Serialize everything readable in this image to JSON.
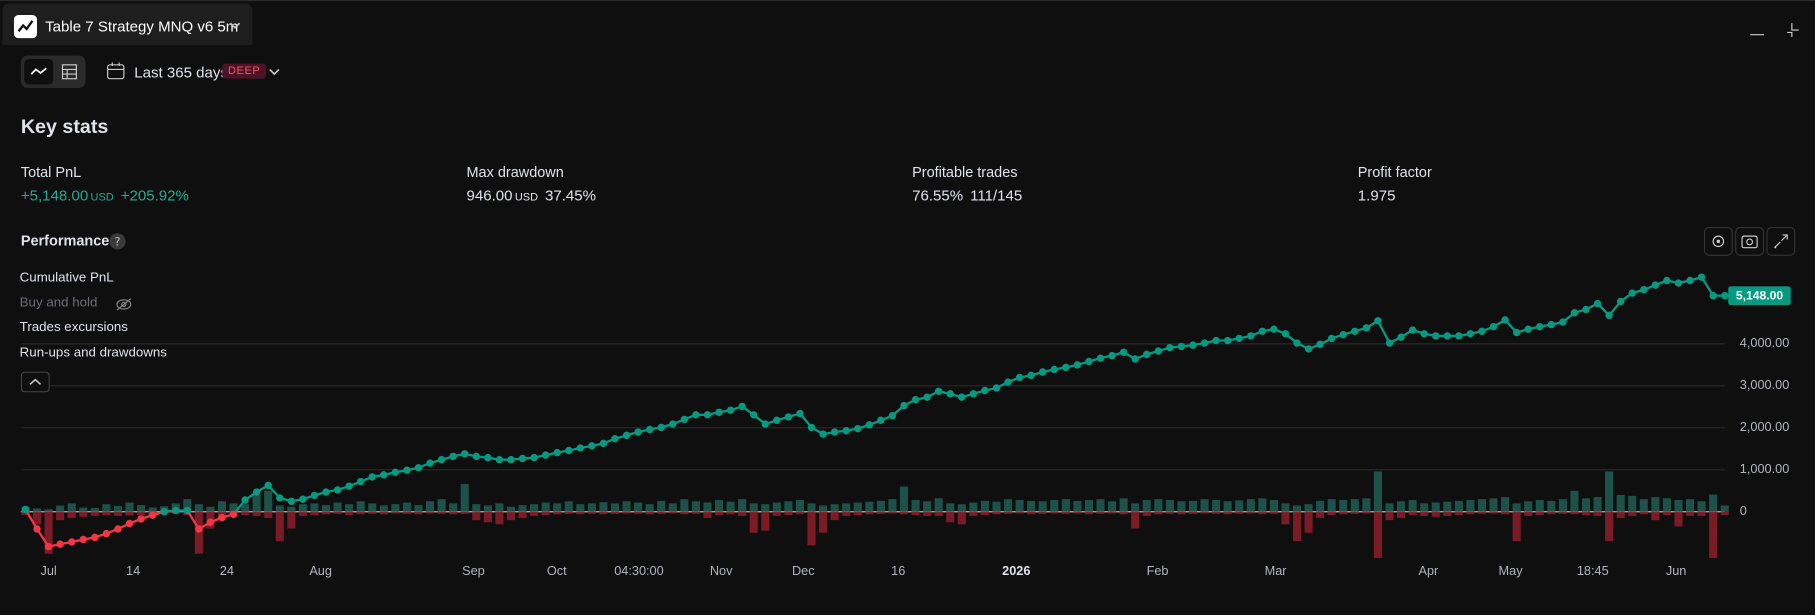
{
  "header": {
    "tab_title": "Table 7 Strategy MNQ v6 5m"
  },
  "toolbar": {
    "date_range": "Last 365 days",
    "badge": "DEEP"
  },
  "key_stats": {
    "title": "Key stats",
    "items": [
      {
        "label": "Total PnL",
        "value": "+5,148.00",
        "unit": "USD",
        "extra": "+205.92%"
      },
      {
        "label": "Max drawdown",
        "value": "946.00",
        "unit": "USD",
        "extra": "37.45%"
      },
      {
        "label": "Profitable trades",
        "value": "76.55%",
        "extra": "111/145"
      },
      {
        "label": "Profit factor",
        "value": "1.975"
      }
    ]
  },
  "performance": {
    "title": "Performance",
    "legend": [
      "Cumulative PnL",
      "Buy and hold",
      "Trades excursions",
      "Run-ups and drawdowns"
    ]
  },
  "chart_data": {
    "type": "line",
    "color": "#089981",
    "negative_color": "#f23645",
    "grid": true,
    "values": [
      55,
      -410,
      -830,
      -770,
      -720,
      -660,
      -610,
      -520,
      -410,
      -280,
      -170,
      -80,
      0,
      30,
      30,
      -410,
      -250,
      -140,
      -60,
      280,
      470,
      630,
      330,
      250,
      300,
      390,
      470,
      520,
      610,
      720,
      830,
      880,
      940,
      990,
      1050,
      1160,
      1240,
      1320,
      1380,
      1320,
      1290,
      1240,
      1240,
      1270,
      1290,
      1350,
      1410,
      1460,
      1520,
      1570,
      1630,
      1740,
      1820,
      1900,
      1960,
      2010,
      2090,
      2200,
      2310,
      2310,
      2370,
      2420,
      2510,
      2310,
      2090,
      2180,
      2260,
      2340,
      2010,
      1850,
      1900,
      1930,
      1980,
      2070,
      2180,
      2290,
      2530,
      2670,
      2730,
      2870,
      2810,
      2730,
      2810,
      2890,
      2950,
      3090,
      3200,
      3250,
      3330,
      3390,
      3440,
      3500,
      3580,
      3660,
      3720,
      3800,
      3640,
      3750,
      3830,
      3910,
      3940,
      3970,
      4020,
      4080,
      4080,
      4130,
      4190,
      4300,
      4350,
      4240,
      4020,
      3880,
      3990,
      4130,
      4220,
      4300,
      4380,
      4550,
      4020,
      4160,
      4330,
      4240,
      4190,
      4190,
      4190,
      4240,
      4300,
      4410,
      4570,
      4270,
      4350,
      4410,
      4460,
      4520,
      4740,
      4820,
      4960,
      4680,
      5010,
      5210,
      5290,
      5400,
      5510,
      5450,
      5510,
      5590,
      5150,
      5148
    ],
    "last_value_label": "5,148.00",
    "runups": {
      "color": "#1f5e55",
      "values": [
        120,
        80,
        60,
        150,
        200,
        100,
        90,
        180,
        140,
        220,
        160,
        100,
        130,
        200,
        300,
        180,
        120,
        250,
        200,
        180,
        400,
        500,
        150,
        120,
        180,
        200,
        160,
        220,
        180,
        250,
        200,
        150,
        180,
        220,
        160,
        250,
        300,
        200,
        660,
        180,
        150,
        200,
        120,
        160,
        180,
        220,
        200,
        250,
        180,
        200,
        230,
        200,
        250,
        220,
        180,
        260,
        200,
        300,
        250,
        220,
        280,
        240,
        300,
        200,
        180,
        220,
        250,
        280,
        200,
        150,
        180,
        200,
        220,
        240,
        260,
        300,
        600,
        280,
        250,
        320,
        200,
        180,
        220,
        260,
        240,
        300,
        280,
        260,
        250,
        280,
        300,
        260,
        280,
        300,
        250,
        320,
        200,
        280,
        300,
        280,
        250,
        260,
        300,
        280,
        250,
        270,
        300,
        320,
        280,
        200,
        150,
        180,
        260,
        300,
        280,
        300,
        320,
        960,
        200,
        250,
        280,
        200,
        220,
        240,
        260,
        280,
        300,
        320,
        350,
        200,
        250,
        280,
        260,
        300,
        500,
        320,
        350,
        960,
        400,
        380,
        300,
        350,
        320,
        280,
        300,
        250,
        410,
        150
      ]
    },
    "drawdowns": {
      "color": "#8e1d29",
      "values": [
        -80,
        -300,
        -1000,
        -200,
        -150,
        -120,
        -100,
        -80,
        -100,
        -90,
        -80,
        -100,
        -60,
        -50,
        -80,
        -1000,
        -400,
        -150,
        -100,
        -80,
        -100,
        -150,
        -700,
        -400,
        -100,
        -80,
        -60,
        -50,
        -80,
        -60,
        -50,
        -60,
        -40,
        -50,
        -60,
        -40,
        -50,
        -60,
        -50,
        -200,
        -250,
        -300,
        -200,
        -150,
        -100,
        -80,
        -60,
        -50,
        -60,
        -50,
        -60,
        -50,
        -40,
        -50,
        -60,
        -50,
        -40,
        -60,
        -50,
        -150,
        -80,
        -60,
        -100,
        -500,
        -450,
        -100,
        -80,
        -60,
        -800,
        -500,
        -200,
        -100,
        -80,
        -60,
        -50,
        -40,
        -60,
        -80,
        -100,
        -100,
        -250,
        -300,
        -100,
        -80,
        -60,
        -50,
        -40,
        -60,
        -50,
        -40,
        -50,
        -40,
        -60,
        -50,
        -40,
        -60,
        -400,
        -100,
        -60,
        -50,
        -60,
        -50,
        -40,
        -50,
        -60,
        -50,
        -40,
        -60,
        -50,
        -300,
        -700,
        -500,
        -150,
        -80,
        -60,
        -50,
        -40,
        -1100,
        -200,
        -150,
        -80,
        -100,
        -120,
        -100,
        -80,
        -60,
        -50,
        -40,
        -60,
        -700,
        -100,
        -80,
        -60,
        -50,
        -60,
        -80,
        -100,
        -700,
        -150,
        -100,
        -60,
        -200,
        -80,
        -350,
        -100,
        -100,
        -1100,
        -80
      ]
    },
    "ylim": [
      -1100,
      5850
    ],
    "yticks": [
      0,
      {
        "value": 1000,
        "label": "1,000.00"
      },
      {
        "value": 2000,
        "label": "2,000.00"
      },
      {
        "value": 3000,
        "label": "3,000.00"
      },
      {
        "value": 4000,
        "label": "4,000.00"
      }
    ],
    "x_axis_labels": [
      "Jul",
      "14",
      "24",
      "Aug",
      "Sep",
      "Oct",
      "04:30:00",
      "Nov",
      "Dec",
      "16",
      "2026",
      "Feb",
      "Mar",
      "Apr",
      "May",
      "18:45",
      "Jun"
    ]
  }
}
